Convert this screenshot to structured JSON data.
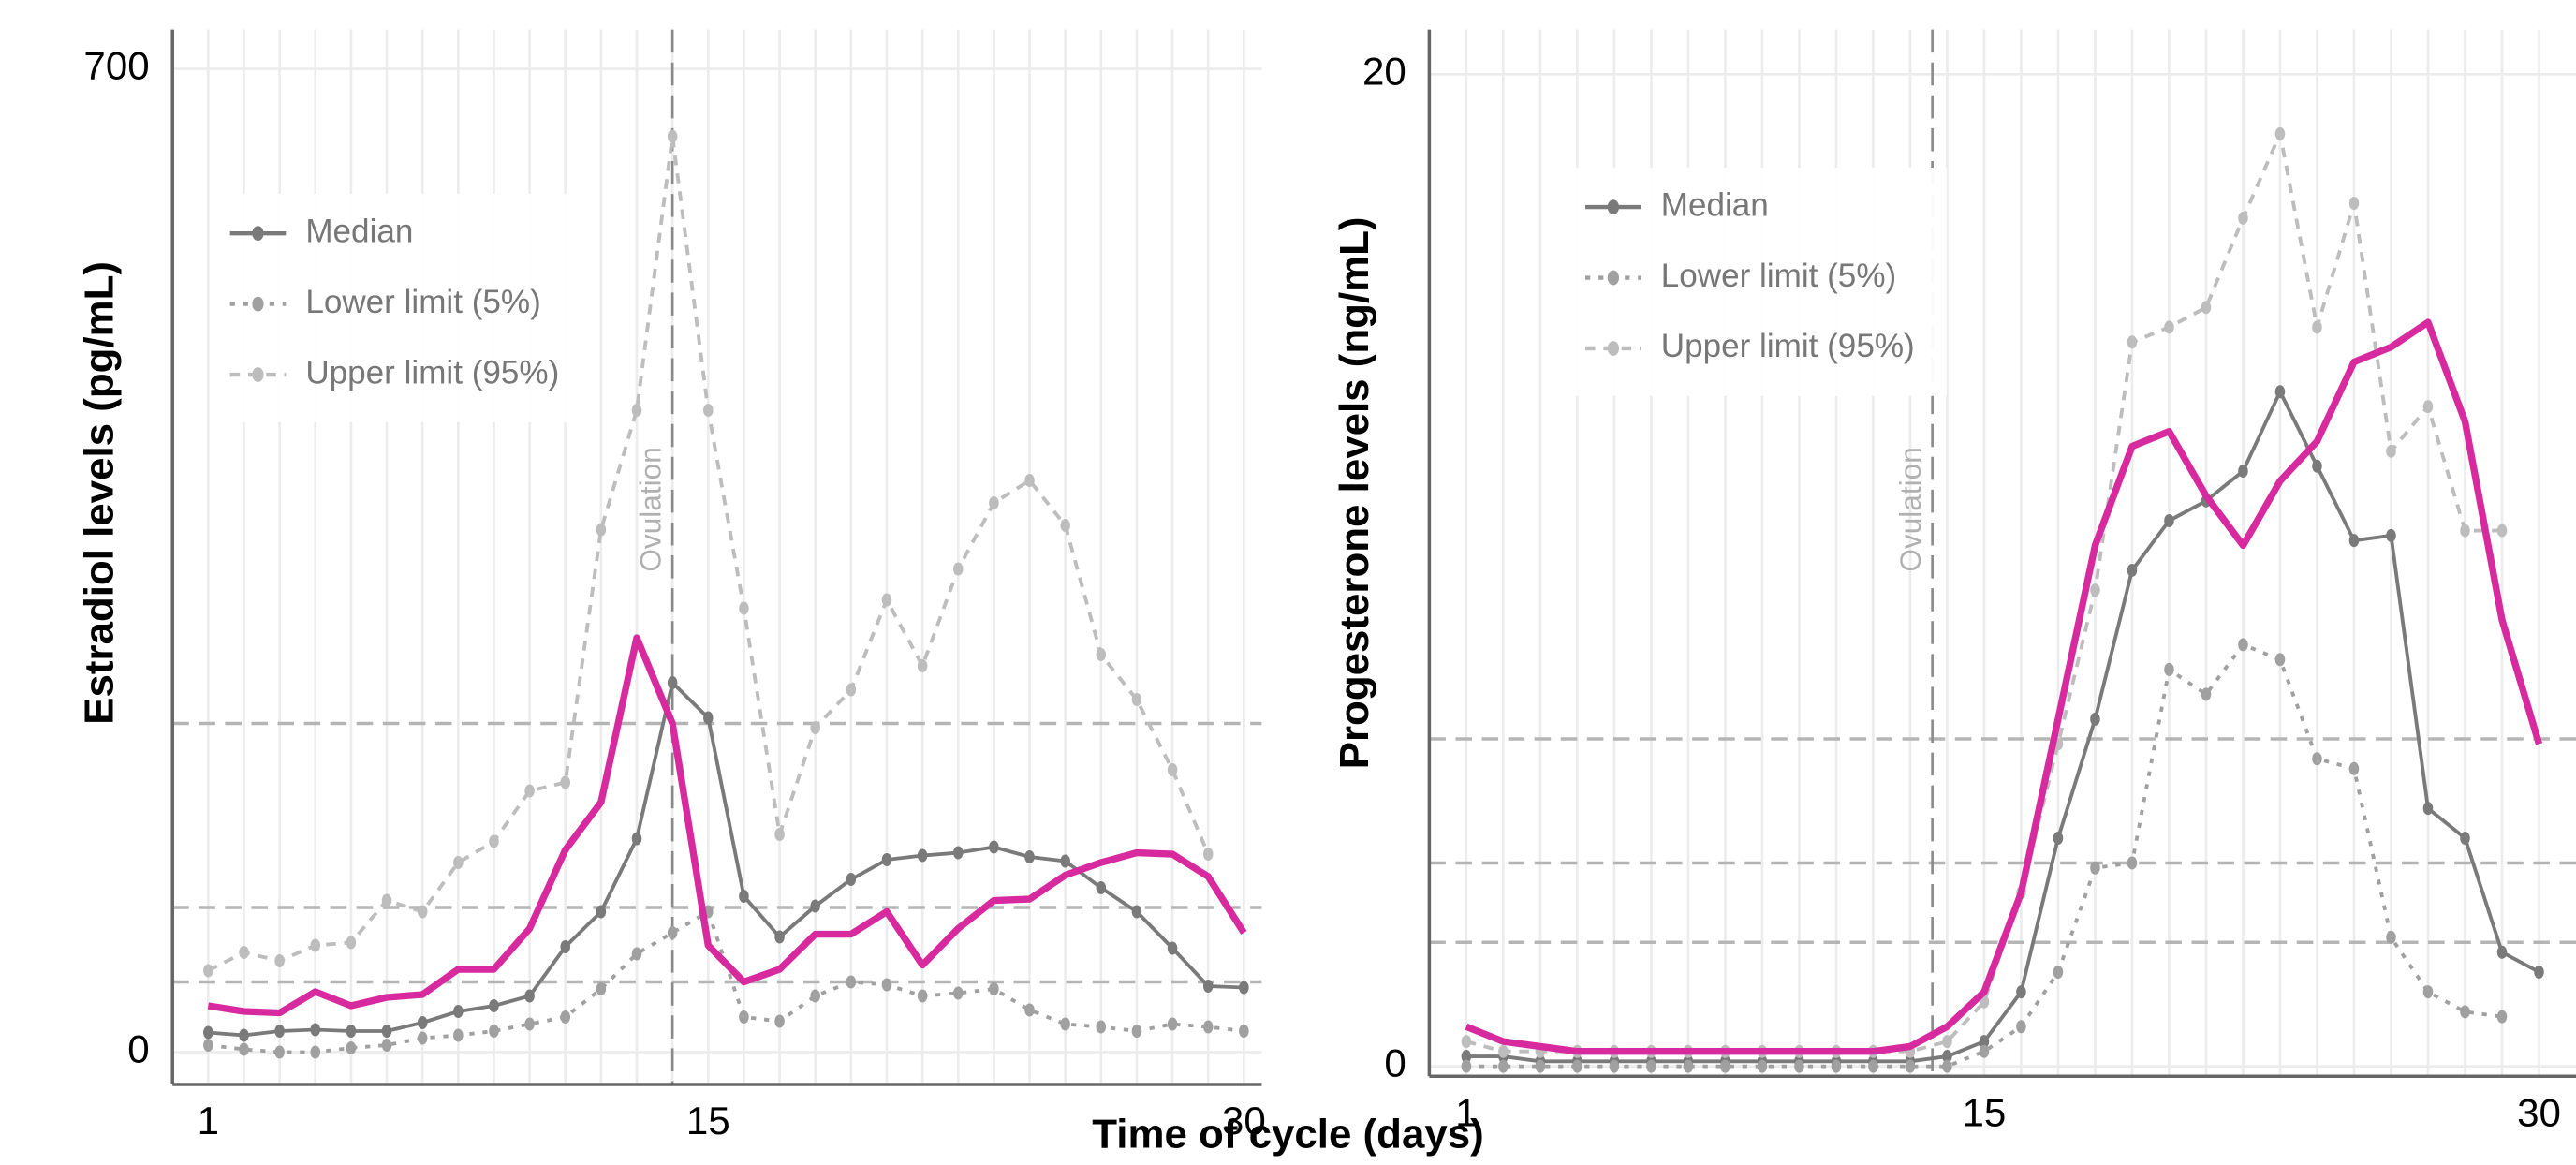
{
  "chart_data": [
    {
      "type": "line",
      "ylabel": "Estradiol levels (pg/mL)",
      "xlabel": "Time of cycle (days)",
      "x": [
        1,
        2,
        3,
        4,
        5,
        6,
        7,
        8,
        9,
        10,
        11,
        12,
        13,
        14,
        15,
        16,
        17,
        18,
        19,
        20,
        21,
        22,
        23,
        24,
        25,
        26,
        27,
        28,
        29,
        30
      ],
      "xlim": [
        0,
        30.5
      ],
      "xticks": [
        1,
        15,
        30
      ],
      "ylim": [
        -23,
        728
      ],
      "yticks": [
        0,
        700
      ],
      "grid": true,
      "legend": "upper left",
      "annotations": [
        {
          "text": "Ovulation",
          "x": 14
        }
      ],
      "hlines": [
        234,
        103,
        50
      ],
      "series": [
        {
          "name": "Median",
          "color": "#7a7a7a",
          "style": "solid",
          "markers": true,
          "values": [
            14,
            12,
            15,
            16,
            15,
            15,
            21,
            29,
            33,
            40,
            75,
            100,
            152,
            263,
            238,
            111,
            82,
            104,
            123,
            137,
            140,
            142,
            146,
            139,
            136,
            117,
            100,
            74,
            47,
            46
          ]
        },
        {
          "name": "Lower limit (5%)",
          "color": "#a0a0a0",
          "style": "dotted",
          "markers": true,
          "values": [
            5,
            2,
            0,
            0,
            3,
            5,
            10,
            12,
            15,
            20,
            25,
            45,
            70,
            85,
            100,
            25,
            22,
            40,
            50,
            48,
            40,
            42,
            45,
            30,
            20,
            18,
            15,
            20,
            18,
            15
          ]
        },
        {
          "name": "Upper limit (95%)",
          "color": "#bdbdbd",
          "style": "dashed",
          "markers": true,
          "values": [
            58,
            71,
            65,
            76,
            78,
            108,
            100,
            135,
            150,
            186,
            192,
            372,
            457,
            652,
            457,
            316,
            155,
            231,
            258,
            322,
            275,
            344,
            391,
            407,
            375,
            283,
            251,
            201,
            141,
            null
          ]
        },
        {
          "color": "#d62a9e",
          "style": "solid",
          "markers": false,
          "values": [
            33,
            29,
            28,
            43,
            33,
            39,
            41,
            59,
            59,
            88,
            144,
            178,
            295,
            234,
            76,
            50,
            59,
            84,
            84,
            100,
            62,
            88,
            108,
            109,
            126,
            135,
            142,
            141,
            125,
            85
          ]
        }
      ]
    },
    {
      "type": "line",
      "ylabel": "Progesterone levels (ng/mL)",
      "x": [
        1,
        2,
        3,
        4,
        5,
        6,
        7,
        8,
        9,
        10,
        11,
        12,
        13,
        14,
        15,
        16,
        17,
        18,
        19,
        20,
        21,
        22,
        23,
        24,
        25,
        26,
        27,
        28,
        29,
        30
      ],
      "xlim": [
        0,
        31
      ],
      "xticks": [
        1,
        15,
        30
      ],
      "ylim": [
        -0.2,
        20.9
      ],
      "yticks": [
        0,
        20
      ],
      "grid": true,
      "legend": "upper left",
      "annotations": [
        {
          "text": "Ovulation",
          "x": 13.6
        }
      ],
      "hlines": [
        6.6,
        4.1,
        2.5
      ],
      "series": [
        {
          "name": "Median",
          "color": "#7a7a7a",
          "style": "solid",
          "markers": true,
          "values": [
            0.2,
            0.2,
            0.1,
            0.1,
            0.1,
            0.1,
            0.1,
            0.1,
            0.1,
            0.1,
            0.1,
            0.1,
            0.1,
            0.2,
            0.5,
            1.5,
            4.6,
            7.0,
            10.0,
            11.0,
            11.4,
            12.0,
            13.6,
            12.1,
            10.6,
            10.7,
            5.2,
            4.6,
            2.3,
            1.9
          ]
        },
        {
          "name": "Lower limit (5%)",
          "color": "#a0a0a0",
          "style": "dotted",
          "markers": true,
          "values": [
            0,
            0,
            0,
            0,
            0,
            0,
            0,
            0,
            0,
            0,
            0,
            0,
            0,
            0,
            0.3,
            0.8,
            1.9,
            4.0,
            4.1,
            8.0,
            7.5,
            8.5,
            8.2,
            6.2,
            6.0,
            2.6,
            1.5,
            1.1,
            1.0,
            null
          ]
        },
        {
          "name": "Upper limit (95%)",
          "color": "#bdbdbd",
          "style": "dashed",
          "markers": true,
          "values": [
            0.5,
            0.3,
            0.3,
            0.3,
            0.3,
            0.3,
            0.3,
            0.3,
            0.3,
            0.3,
            0.3,
            0.3,
            0.3,
            0.5,
            1.3,
            3.5,
            6.5,
            9.6,
            14.6,
            14.9,
            15.3,
            17.1,
            18.8,
            14.9,
            17.4,
            12.4,
            13.3,
            10.8,
            10.8,
            null
          ]
        },
        {
          "color": "#d62a9e",
          "style": "solid",
          "markers": false,
          "values": [
            0.8,
            0.5,
            0.4,
            0.3,
            0.3,
            0.3,
            0.3,
            0.3,
            0.3,
            0.3,
            0.3,
            0.3,
            0.4,
            0.8,
            1.5,
            3.5,
            7.0,
            10.5,
            12.5,
            12.8,
            11.5,
            10.5,
            11.8,
            12.6,
            14.2,
            14.5,
            15.0,
            13.0,
            9.0,
            6.5
          ]
        }
      ]
    }
  ]
}
